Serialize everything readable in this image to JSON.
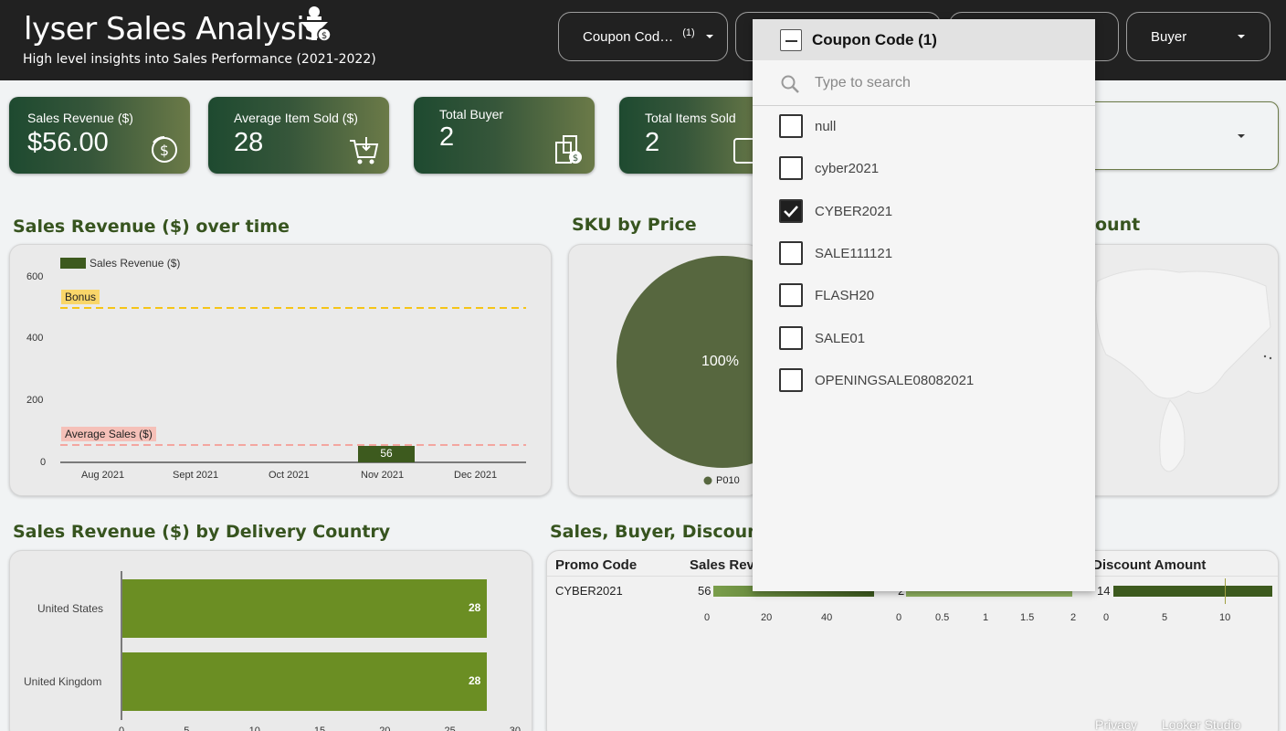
{
  "header": {
    "title": "lyser Sales Analysis",
    "subtitle": "High level insights into Sales Performance (2021-2022)",
    "filters": [
      {
        "label": "Coupon Cod…",
        "badge": "(1)"
      },
      {
        "label": "",
        "badge": ""
      },
      {
        "label": "",
        "badge": ""
      },
      {
        "label": "Buyer",
        "badge": ""
      }
    ]
  },
  "kpis": [
    {
      "label": "Sales Revenue ($)",
      "value": "$56.00",
      "icon": "dollar-refresh-icon"
    },
    {
      "label": "Average Item Sold ($)",
      "value": "28",
      "icon": "cart-icon"
    },
    {
      "label": "Total Buyer",
      "value": "2",
      "icon": "receipt-coins-icon"
    },
    {
      "label": "Total Items Sold",
      "value": "2",
      "icon": "box-icon"
    }
  ],
  "sections": {
    "revenue_over_time": "Sales Revenue ($) over time",
    "sku_by_price": "SKU by Price",
    "map_partial": "ount",
    "revenue_by_country": "Sales Revenue ($) by Delivery Country",
    "sales_buyer_discount": "Sales, Buyer, Discount B"
  },
  "revenue_chart": {
    "legend": "Sales Revenue ($)",
    "bonus_label": "Bonus",
    "avg_label": "Average Sales ($)",
    "y_ticks": [
      "600",
      "400",
      "200",
      "0"
    ],
    "x_ticks": [
      "Aug 2021",
      "Sept 2021",
      "Oct 2021",
      "Nov 2021",
      "Dec 2021"
    ],
    "bar_value": "56"
  },
  "pie": {
    "value_label": "100%",
    "legend": "P010",
    "color": "#57673f"
  },
  "table": {
    "headers": [
      "Promo Code",
      "Sales Reve",
      "",
      "Discount Amount"
    ],
    "row": {
      "code": "CYBER2021",
      "sales": "56",
      "buyer": "2",
      "discount": "14"
    },
    "axis1": [
      "0",
      "20",
      "40"
    ],
    "axis2": [
      "0",
      "0.5",
      "1",
      "1.5",
      "2"
    ],
    "axis3": [
      "0",
      "5",
      "10"
    ]
  },
  "country_chart": {
    "countries": [
      {
        "name": "United States",
        "value": "28"
      },
      {
        "name": "United Kingdom",
        "value": "28"
      }
    ],
    "x_ticks": [
      "0",
      "5",
      "10",
      "15",
      "20",
      "25",
      "30"
    ]
  },
  "dropdown": {
    "title": "Coupon Code (1)",
    "search_placeholder": "Type to search",
    "items": [
      {
        "label": "null",
        "checked": false
      },
      {
        "label": "cyber2021",
        "checked": false
      },
      {
        "label": "CYBER2021",
        "checked": true
      },
      {
        "label": "SALE111121",
        "checked": false
      },
      {
        "label": "FLASH20",
        "checked": false
      },
      {
        "label": "SALE01",
        "checked": false
      },
      {
        "label": "OPENINGSALE08082021",
        "checked": false
      }
    ]
  },
  "footer": {
    "privacy": "Privacy",
    "looker": "Looker Studio"
  },
  "colors": {
    "accent": "#37541f",
    "bar_dark": "#3d5a1e",
    "bar_light": "#6b8e23",
    "bonus": "#f5c518",
    "avg": "#f4a6a0"
  },
  "chart_data": [
    {
      "type": "bar",
      "title": "Sales Revenue ($) over time",
      "categories": [
        "Aug 2021",
        "Sept 2021",
        "Oct 2021",
        "Nov 2021",
        "Dec 2021"
      ],
      "series": [
        {
          "name": "Sales Revenue ($)",
          "values": [
            0,
            0,
            0,
            56,
            0
          ]
        }
      ],
      "reference_lines": [
        {
          "label": "Bonus",
          "value": 500
        },
        {
          "label": "Average Sales ($)",
          "value": 56
        }
      ],
      "ylim": [
        0,
        600
      ]
    },
    {
      "type": "pie",
      "title": "SKU by Price",
      "categories": [
        "P010"
      ],
      "values": [
        100
      ]
    },
    {
      "type": "bar",
      "title": "Sales Revenue ($) by Delivery Country",
      "categories": [
        "United States",
        "United Kingdom"
      ],
      "values": [
        28,
        28
      ],
      "xlim": [
        0,
        30
      ]
    }
  ]
}
